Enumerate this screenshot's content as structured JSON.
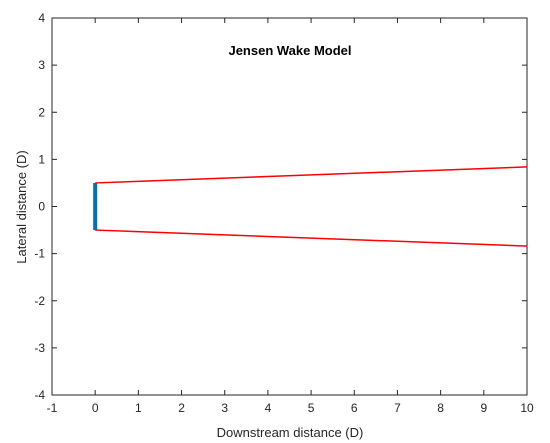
{
  "chart_data": {
    "type": "line",
    "title": "Jensen Wake Model",
    "xlabel": "Downstream distance (D)",
    "ylabel": "Lateral distance (D)",
    "xlim": [
      -1,
      10
    ],
    "ylim": [
      -4,
      4
    ],
    "x_ticks": [
      "-1",
      "0",
      "1",
      "2",
      "3",
      "4",
      "5",
      "6",
      "7",
      "8",
      "9",
      "10"
    ],
    "y_ticks": [
      "-4",
      "-3",
      "-2",
      "-1",
      "0",
      "1",
      "2",
      "3",
      "4"
    ],
    "grid": false,
    "series": [
      {
        "role": "turbine-rotor",
        "color": "#0072BD",
        "points": [
          [
            0,
            -0.5
          ],
          [
            0,
            0.5
          ]
        ]
      },
      {
        "role": "wake-upper-boundary",
        "color": "#FF0000",
        "points": [
          [
            0,
            0.5
          ],
          [
            10,
            0.84
          ]
        ]
      },
      {
        "role": "wake-lower-boundary",
        "color": "#FF0000",
        "points": [
          [
            0,
            -0.5
          ],
          [
            10,
            -0.84
          ]
        ]
      }
    ]
  }
}
